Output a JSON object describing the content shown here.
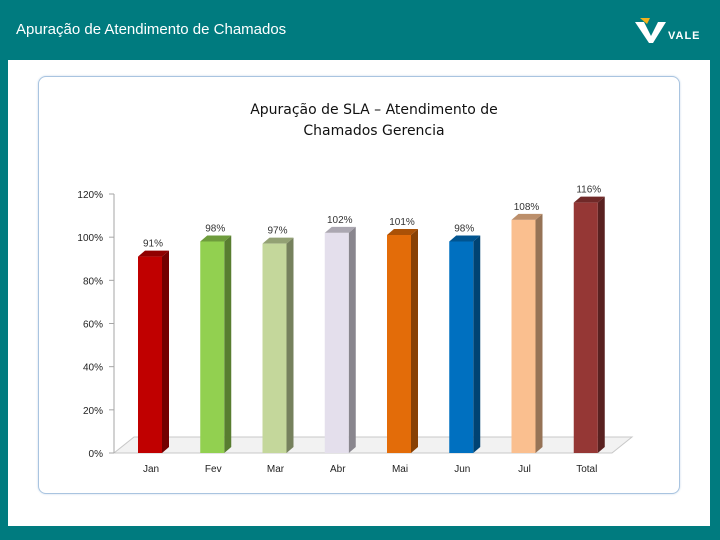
{
  "header": {
    "title": "Apuração de Atendimento de Chamados",
    "logo_text": "VALE"
  },
  "chart_data": {
    "type": "bar",
    "title_line1": "Apuração de SLA – Atendimento de",
    "title_line2": "Chamados Gerencia",
    "categories": [
      "Jan",
      "Fev",
      "Mar",
      "Abr",
      "Mai",
      "Jun",
      "Jul",
      "Total"
    ],
    "values": [
      91,
      98,
      97,
      102,
      101,
      98,
      108,
      116
    ],
    "data_labels": [
      "91%",
      "98%",
      "97%",
      "102%",
      "101%",
      "98%",
      "108%",
      "116%"
    ],
    "colors": [
      "#c00000",
      "#92d050",
      "#c4d79b",
      "#e4dfec",
      "#e36c09",
      "#0070c0",
      "#fabf8f",
      "#953735"
    ],
    "y_ticks": [
      "0%",
      "20%",
      "40%",
      "60%",
      "80%",
      "100%",
      "120%"
    ],
    "ylim": [
      0,
      120
    ],
    "grid": false,
    "legend": "none"
  }
}
